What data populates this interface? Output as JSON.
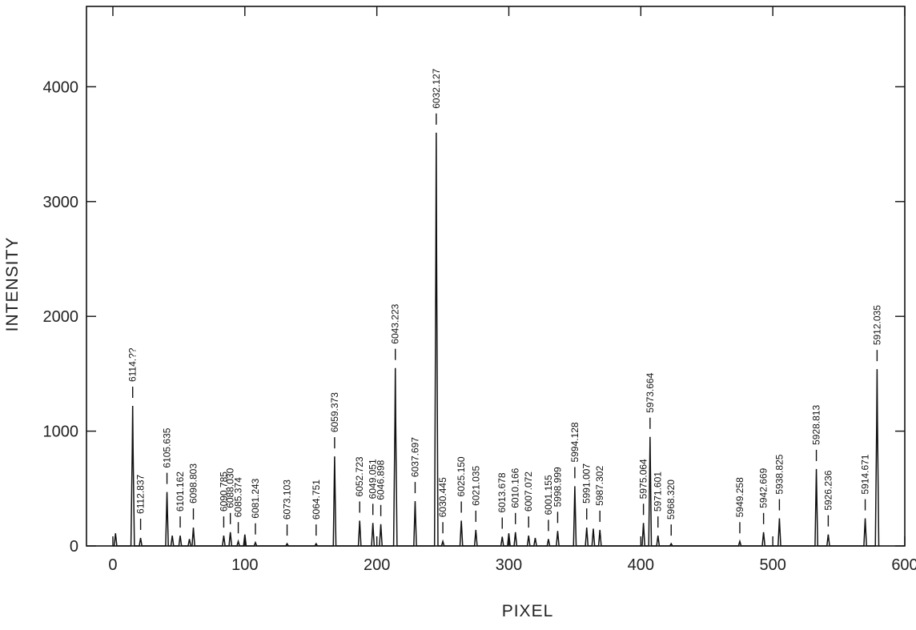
{
  "chart_data": {
    "type": "line",
    "xlabel": "PIXEL",
    "ylabel": "INTENSITY",
    "xlim": [
      -20,
      600
    ],
    "ylim": [
      0,
      4700
    ],
    "xticks": [
      0,
      100,
      200,
      300,
      400,
      500,
      600
    ],
    "yticks": [
      0,
      1000,
      2000,
      3000,
      4000
    ],
    "grid": false,
    "series": [
      {
        "peaks": [
          {
            "x": 2,
            "y": 110
          },
          {
            "x": 15,
            "y": 1220,
            "label": "6114.??"
          },
          {
            "x": 21,
            "y": 70,
            "label": "6112.837"
          },
          {
            "x": 41,
            "y": 470,
            "label": "6105.635"
          },
          {
            "x": 45,
            "y": 90
          },
          {
            "x": 51,
            "y": 90,
            "label": "6101.162"
          },
          {
            "x": 58,
            "y": 60
          },
          {
            "x": 61,
            "y": 160,
            "label": "6098.803"
          },
          {
            "x": 84,
            "y": 90,
            "label": "6090.785"
          },
          {
            "x": 89,
            "y": 120,
            "label": "6088.030"
          },
          {
            "x": 95,
            "y": 40,
            "label": "6085.374"
          },
          {
            "x": 100,
            "y": 100
          },
          {
            "x": 108,
            "y": 30,
            "label": "6081.243"
          },
          {
            "x": 132,
            "y": 20,
            "label": "6073.103"
          },
          {
            "x": 154,
            "y": 20,
            "label": "6064.751"
          },
          {
            "x": 168,
            "y": 780,
            "label": "6059.373"
          },
          {
            "x": 187,
            "y": 220,
            "label": "6052.723"
          },
          {
            "x": 197,
            "y": 200,
            "label": "6049.051"
          },
          {
            "x": 203,
            "y": 190,
            "label": "6046.898"
          },
          {
            "x": 214,
            "y": 1550,
            "label": "6043.223"
          },
          {
            "x": 229,
            "y": 390,
            "label": "6037.697"
          },
          {
            "x": 245,
            "y": 3600,
            "label": "6032.127"
          },
          {
            "x": 250,
            "y": 40,
            "label": "6030.445"
          },
          {
            "x": 264,
            "y": 220,
            "label": "6025.150"
          },
          {
            "x": 275,
            "y": 140,
            "label": "6021.035"
          },
          {
            "x": 295,
            "y": 80,
            "label": "6013.678"
          },
          {
            "x": 300,
            "y": 110
          },
          {
            "x": 305,
            "y": 120,
            "label": "6010.166"
          },
          {
            "x": 315,
            "y": 90,
            "label": "6007.072"
          },
          {
            "x": 320,
            "y": 70
          },
          {
            "x": 330,
            "y": 60,
            "label": "6001.155"
          },
          {
            "x": 337,
            "y": 130,
            "label": "5998.999"
          },
          {
            "x": 350,
            "y": 520,
            "label": "5994.128"
          },
          {
            "x": 359,
            "y": 160,
            "label": "5991.007"
          },
          {
            "x": 364,
            "y": 150
          },
          {
            "x": 369,
            "y": 140,
            "label": "5987.302"
          },
          {
            "x": 402,
            "y": 200,
            "label": "5975.064"
          },
          {
            "x": 407,
            "y": 950,
            "label": "5973.664"
          },
          {
            "x": 413,
            "y": 90,
            "label": "5971.601"
          },
          {
            "x": 423,
            "y": 20,
            "label": "5968.320"
          },
          {
            "x": 475,
            "y": 40,
            "label": "5949.258"
          },
          {
            "x": 493,
            "y": 120,
            "label": "5942.669"
          },
          {
            "x": 505,
            "y": 240,
            "label": "5938.825"
          },
          {
            "x": 533,
            "y": 670,
            "label": "5928.813"
          },
          {
            "x": 542,
            "y": 100,
            "label": "5926.236"
          },
          {
            "x": 570,
            "y": 240,
            "label": "5914.671"
          },
          {
            "x": 579,
            "y": 1540,
            "label": "5912.035"
          }
        ]
      }
    ]
  }
}
